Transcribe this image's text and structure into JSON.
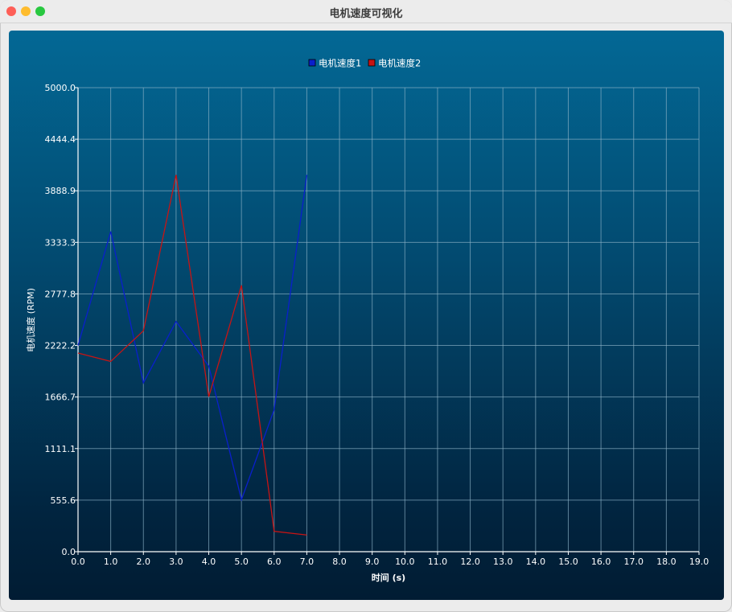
{
  "window": {
    "title": "电机速度可视化"
  },
  "chart_data": {
    "type": "line",
    "x": [
      0,
      1,
      2,
      3,
      4,
      5,
      6,
      7
    ],
    "series": [
      {
        "name": "电机速度1",
        "color": "#0a1fcc",
        "values": [
          2222,
          3450,
          1820,
          2480,
          2000,
          560,
          1530,
          4060
        ]
      },
      {
        "name": "电机速度2",
        "color": "#c81414",
        "values": [
          2140,
          2050,
          2380,
          4060,
          1670,
          2870,
          220,
          180
        ]
      }
    ],
    "xlabel": "时间 (s)",
    "ylabel": "电机速度 (RPM)",
    "xlim": [
      0,
      19
    ],
    "ylim": [
      0,
      5000
    ],
    "xticks": [
      "0.0",
      "1.0",
      "2.0",
      "3.0",
      "4.0",
      "5.0",
      "6.0",
      "7.0",
      "8.0",
      "9.0",
      "10.0",
      "11.0",
      "12.0",
      "13.0",
      "14.0",
      "15.0",
      "16.0",
      "17.0",
      "18.0",
      "19.0"
    ],
    "yticks": [
      "0.0",
      "555.6",
      "1111.1",
      "1666.7",
      "2222.2",
      "2777.8",
      "3333.3",
      "3888.9",
      "4444.4",
      "5000.0"
    ],
    "grid": true,
    "legend": "top-center"
  }
}
